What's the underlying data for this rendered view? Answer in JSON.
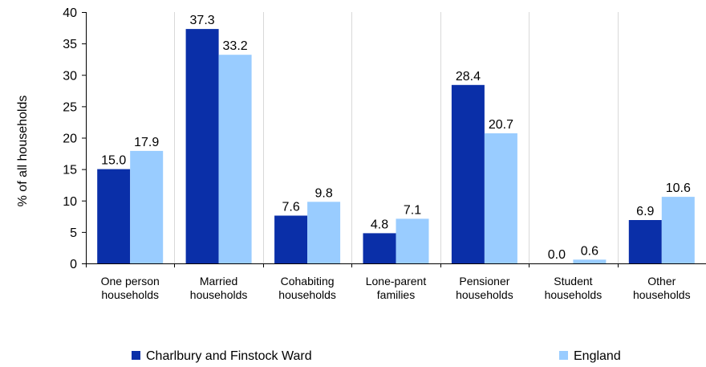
{
  "chart_data": {
    "type": "bar",
    "categories": [
      [
        "One person",
        "households"
      ],
      [
        "Married",
        "households"
      ],
      [
        "Cohabiting",
        "households"
      ],
      [
        "Lone-parent",
        "families"
      ],
      [
        "Pensioner",
        "households"
      ],
      [
        "Student",
        "households"
      ],
      [
        "Other",
        "households"
      ]
    ],
    "series": [
      {
        "name": "Charlbury and Finstock Ward",
        "color": "#0a2fa8",
        "values": [
          15.0,
          37.3,
          7.6,
          4.8,
          28.4,
          0.0,
          6.9
        ]
      },
      {
        "name": "England",
        "color": "#99ccff",
        "values": [
          17.9,
          33.2,
          9.8,
          7.1,
          20.7,
          0.6,
          10.6
        ]
      }
    ],
    "ylabel": "% of all households",
    "xlabel": "",
    "ylim": [
      0,
      40
    ],
    "yticks": [
      0,
      5,
      10,
      15,
      20,
      25,
      30,
      35,
      40
    ],
    "value_decimals": 1,
    "grid": "vertical lines between categories",
    "legend_position": "bottom"
  }
}
